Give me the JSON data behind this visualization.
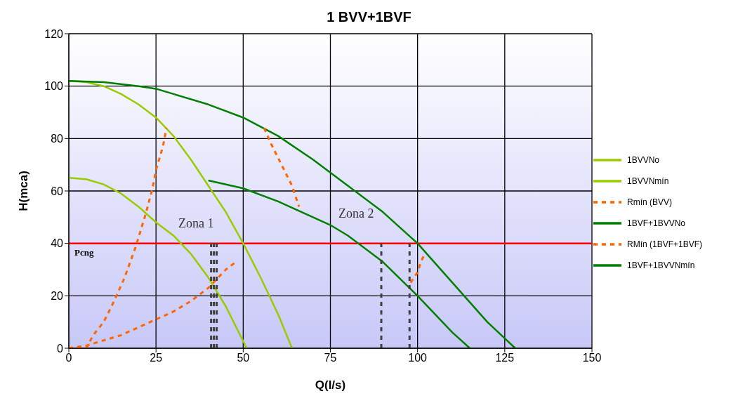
{
  "chart_data": {
    "type": "line",
    "title": "1 BVV+1BVF",
    "xlabel": "Q(l/s)",
    "ylabel": "H(mca)",
    "xlim": [
      0,
      150
    ],
    "xticks": [
      0,
      25,
      50,
      75,
      100,
      125,
      150
    ],
    "ylim": [
      0,
      120
    ],
    "yticks": [
      0,
      20,
      40,
      60,
      80,
      100,
      120
    ],
    "grid": true,
    "legend": "right",
    "marker": "none",
    "series": [
      {
        "name": "1BVVNo",
        "color": "#99cc00",
        "line_style": "solid",
        "x": [
          0,
          5,
          10,
          15,
          20,
          25,
          30,
          35,
          40,
          45,
          50,
          55,
          60,
          64
        ],
        "values": [
          102,
          101.5,
          100,
          97,
          93,
          88,
          81,
          72,
          62,
          52,
          40,
          27,
          13,
          0
        ]
      },
      {
        "name": "1BVVNmín",
        "color": "#99cc00",
        "line_style": "solid",
        "x": [
          0,
          5,
          10,
          15,
          20,
          25,
          30,
          35,
          40,
          45,
          51
        ],
        "values": [
          65,
          64.5,
          62.5,
          59,
          54,
          48,
          43,
          36,
          27,
          16,
          0
        ]
      },
      {
        "name": "Rmín (BVV)",
        "color": "#ff6600",
        "line_style": "dashed",
        "x": [
          0,
          5,
          7,
          10,
          13,
          16,
          19,
          22,
          24,
          25,
          27,
          28
        ],
        "values": [
          0,
          0,
          5,
          10,
          18,
          27,
          38,
          51,
          61,
          68,
          77,
          84
        ]
      },
      {
        "name": "1BVF+1BVVNo",
        "color": "#008000",
        "line_style": "solid",
        "x": [
          0,
          10,
          20,
          25,
          30,
          40,
          50,
          60,
          70,
          80,
          90,
          100,
          110,
          120,
          128
        ],
        "values": [
          102,
          101.5,
          100,
          99,
          97,
          93,
          88,
          81,
          72,
          62,
          52,
          40,
          25,
          10,
          0
        ]
      },
      {
        "name": "RMín (1BVF+1BVF)",
        "color": "#ff6600",
        "line_style": "dashed",
        "x": [
          0,
          5,
          10,
          15,
          20,
          25,
          30,
          35,
          40,
          45,
          48
        ],
        "values": [
          0,
          1,
          3,
          5,
          8,
          11,
          14,
          18,
          23,
          30,
          33
        ]
      },
      {
        "name": "1BVF+1BVVNmín",
        "color": "#008000",
        "line_style": "solid",
        "x": [
          40,
          50,
          60,
          75,
          80,
          90,
          100,
          110,
          115
        ],
        "values": [
          64,
          61,
          56,
          47,
          43,
          33,
          20,
          6,
          0
        ]
      },
      {
        "color": "#ff6600",
        "line_style": "dashed",
        "x": [
          56,
          58,
          61,
          64,
          66
        ],
        "values": [
          84,
          78,
          70,
          62,
          54
        ]
      },
      {
        "color": "#ff6600",
        "line_style": "dashed",
        "x": [
          98,
          100,
          101,
          102
        ],
        "values": [
          25,
          29,
          33,
          36
        ]
      },
      {
        "color": "#404040",
        "line_style": "dashed",
        "x": [
          40.8,
          40.8
        ],
        "values": [
          0,
          40
        ]
      },
      {
        "color": "#404040",
        "line_style": "dashed",
        "x": [
          41.6,
          41.6
        ],
        "values": [
          0,
          40
        ]
      },
      {
        "color": "#404040",
        "line_style": "dashed",
        "x": [
          42.4,
          42.4
        ],
        "values": [
          0,
          40
        ]
      },
      {
        "color": "#404040",
        "line_style": "dashed",
        "x": [
          89.6,
          89.6
        ],
        "values": [
          0,
          40
        ]
      },
      {
        "color": "#404040",
        "line_style": "dashed",
        "x": [
          97.7,
          97.7
        ],
        "values": [
          0,
          40
        ]
      }
    ],
    "ref_lines": [
      {
        "axis": "y",
        "value": 40,
        "label": "Pcng",
        "color": "#ff0000"
      }
    ],
    "annotations": [
      "Zona 1",
      "Zona 2"
    ]
  }
}
